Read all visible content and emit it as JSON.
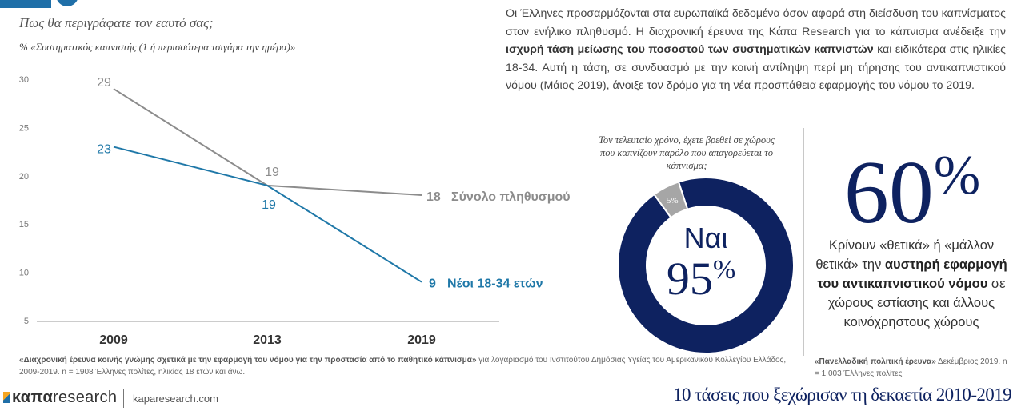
{
  "header": {
    "question": "Πως θα περιγράφατε τον εαυτό σας;",
    "subtitle": "% «Συστηματικός καπνιστής (1 ή περισσότερα τσιγάρα την ημέρα)»"
  },
  "intro": {
    "text_1": "Οι Έλληνες προσαρμόζονται στα ευρωπαϊκά δεδομένα όσον αφορά στη διείσδυση του καπνίσματος στον ενήλικο πληθυσμό. Η διαχρονική έρευνα της Κάπα Research για το κάπνισμα ανέδειξε την ",
    "bold": "ισχυρή τάση μείωσης του ποσοστού των συστηματικών καπνιστών",
    "text_2": " και ειδικότερα στις ηλικίες 18-34. Αυτή η τάση, σε συνδυασμό με την κοινή αντίληψη περί μη τήρησης του αντικαπνιστικού νόμου (Μάιος 2019), άνοιξε τον δρόμο για τη νέα προσπάθεια εφαρμογής του νόμου το 2019."
  },
  "chart_data": [
    {
      "type": "line",
      "x": [
        "2009",
        "2013",
        "2019"
      ],
      "ylim": [
        5,
        30
      ],
      "yticks": [
        "30",
        "25",
        "20",
        "15",
        "10",
        "5"
      ],
      "grid": false,
      "series": [
        {
          "name": "Σύνολο πληθυσμού",
          "values": [
            29,
            19,
            18
          ],
          "color": "#8c8c8c",
          "value_labels": [
            "29",
            "19",
            "18"
          ]
        },
        {
          "name": "Νέοι 18-34 ετών",
          "values": [
            23,
            19,
            9
          ],
          "color": "#1f78a8",
          "value_labels": [
            "23",
            "19",
            "9"
          ]
        }
      ]
    },
    {
      "type": "pie",
      "title": "Τον τελευταίο χρόνο, έχετε βρεθεί σε χώρους που καπνίζουν παρόλο που απαγορεύεται το κάπνισμα;",
      "slices": [
        {
          "label": "Ναι",
          "value": 95,
          "display": "95",
          "color": "#0e2260"
        },
        {
          "label": "",
          "value": 5,
          "display": "5%",
          "color": "#a6a6a6"
        }
      ],
      "percent_sign": "%"
    }
  ],
  "stat": {
    "value": "60",
    "percent_sign": "%",
    "text_1": "Κρίνουν «θετικά» ή «μάλλον θετικά» την ",
    "bold": "αυστηρή εφαρμογή του αντικαπνιστικού νόμου",
    "text_2": " σε χώρους εστίασης και άλλους κοινόχρηστους χώρους"
  },
  "sources": {
    "left_bold": "«Διαχρονική έρευνα κοινής γνώμης σχετικά με την εφαρμογή του νόμου για την προστασία από το παθητικό κάπνισμα»",
    "left_rest": " για λογαριασμό του Ινστιτούτου Δημόσιας Υγείας του Αμερικανικού Κολλεγίου Ελλάδος, 2009-2019. n = 1908 Έλληνες πολίτες, ηλικίας 18 ετών και άνω.",
    "right_bold": "«Πανελλαδική πολιτική έρευνα»",
    "right_rest": " Δεκέμβριος 2019. n = 1.003 Έλληνες πολίτες"
  },
  "footer": {
    "logo_bold": "καπα",
    "logo_rest": "research",
    "website": "kaparesearch.com",
    "title": "10 τάσεις που ξεχώρισαν τη δεκαετία 2010-2019"
  },
  "colors": {
    "navy": "#0e2260",
    "accent_blue": "#1f78a8",
    "gray_line": "#8c8c8c"
  }
}
